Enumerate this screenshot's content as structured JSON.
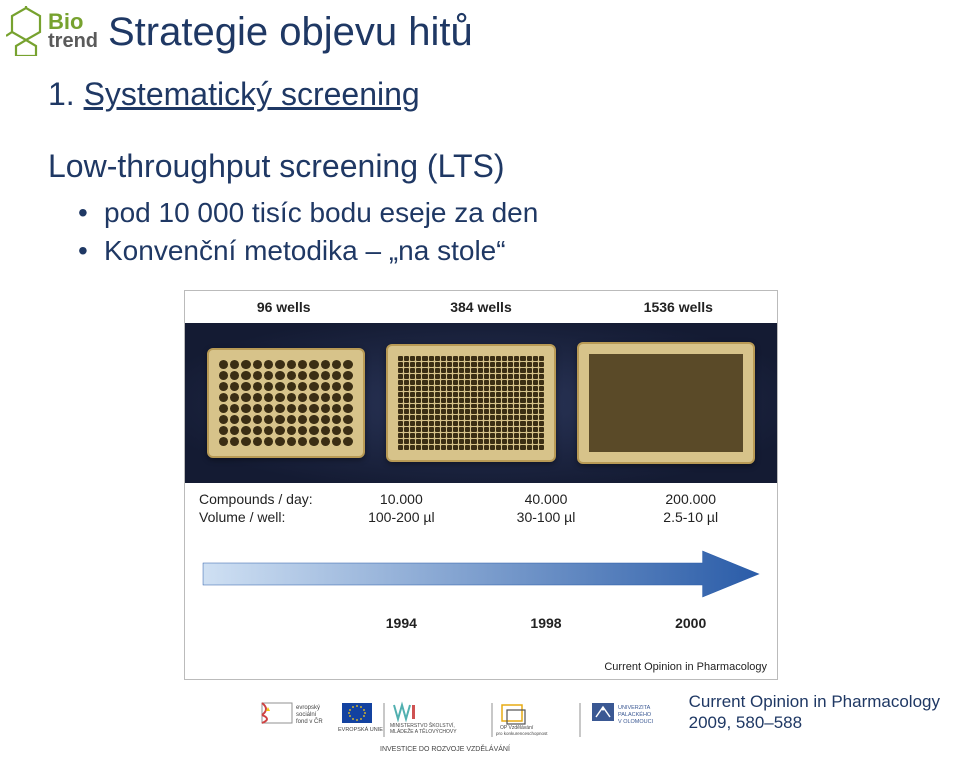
{
  "logo": {
    "text_top": "Bio",
    "text_bottom": "trend"
  },
  "title": "Strategie objevu hitů",
  "subtitle": {
    "number": "1.",
    "text": "Systematický screening"
  },
  "section_heading": "Low-throughput screening (LTS)",
  "bullets": [
    "pod 10 000 tisíc bodu eseje za den",
    "Konvenční metodika – „na stole“"
  ],
  "figure": {
    "well_labels": [
      "96 wells",
      "384 wells",
      "1536 wells"
    ],
    "row_labels": {
      "compounds": "Compounds / day:",
      "volume": "Volume / well:"
    },
    "compounds": [
      "10.000",
      "40.000",
      "200.000"
    ],
    "volumes": [
      "100-200 µl",
      "30-100 µl",
      "2.5-10 µl"
    ],
    "years": [
      "1994",
      "1998",
      "2000"
    ],
    "caption": "Current Opinion in Pharmacology",
    "plate_bg_color": "#d7c38a",
    "plate_border_color": "#b89a55",
    "plate_well_color": "#3b2e14",
    "arrow_gradient_from": "#cfe0f3",
    "arrow_gradient_to": "#2a5ca8",
    "plates_bg_dark": "#141b33"
  },
  "citation": {
    "line1": "Current Opinion in Pharmacology",
    "line2": "2009, 580–588"
  },
  "footer": {
    "esf_label": "evropský\nsociální\nfond v ČR",
    "eu_label": "EVROPSKÁ UNIE",
    "ministry_label": "MINISTERSTVO ŠKOLSTVÍ,\nMLÁDEŽE A TĚLOVÝCHOVY",
    "op_label": "OP Vzdělávání\npro konkurenceschopnost",
    "university_label": "UNIVERZITA\nPALACKÉHO\nV OLOMOUCI",
    "motto": "INVESTICE DO ROZVOJE VZDĚLÁVÁNÍ"
  }
}
